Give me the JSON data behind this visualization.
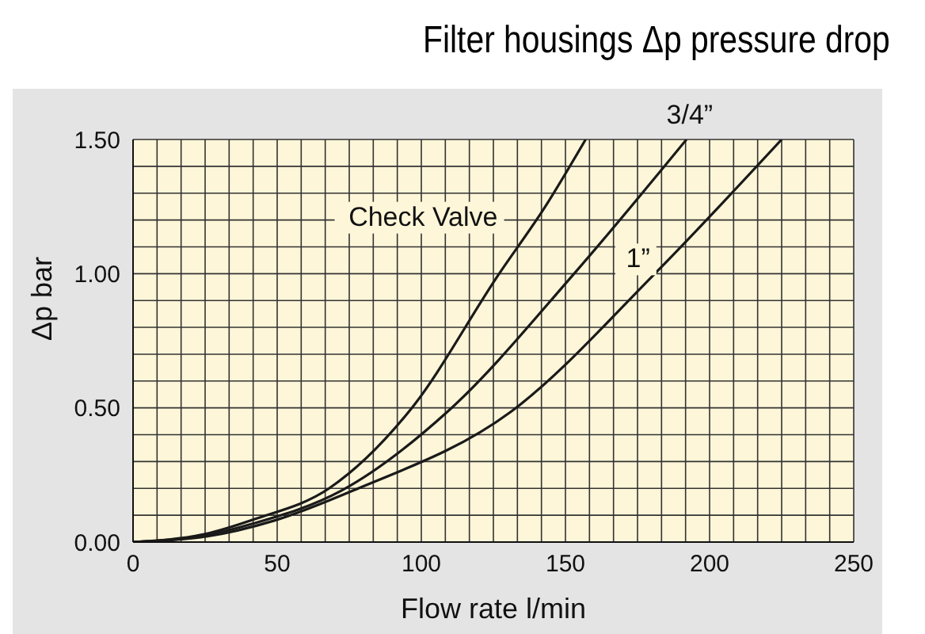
{
  "chart_data": {
    "type": "line",
    "title": "Filter housings Δp pressure drop",
    "xlabel": "Flow rate l/min",
    "ylabel": "Δp bar",
    "series": [
      {
        "name": "Check Valve",
        "color": "#1a1a1a",
        "x": [
          0,
          25,
          42,
          68,
          96,
          127,
          143,
          157
        ],
        "values": [
          0,
          0.03,
          0.085,
          0.2,
          0.49,
          1.0,
          1.25,
          1.5
        ]
      },
      {
        "name": "3/4”",
        "color": "#1a1a1a",
        "x": [
          0,
          25,
          42,
          72,
          109,
          153,
          192
        ],
        "values": [
          0,
          0.025,
          0.07,
          0.19,
          0.485,
          1.0,
          1.5
        ]
      },
      {
        "name": "1”",
        "color": "#1a1a1a",
        "x": [
          0,
          25,
          49,
          77,
          131,
          181,
          225
        ],
        "values": [
          0,
          0.02,
          0.08,
          0.195,
          0.485,
          1.0,
          1.5
        ]
      }
    ],
    "xlim": [
      0,
      250
    ],
    "xticks": [
      0,
      {
        "value": 8.33,
        "label": null
      },
      {
        "value": 16.67,
        "label": null
      },
      {
        "value": 25,
        "label": null
      },
      {
        "value": 33.33,
        "label": null
      },
      {
        "value": 41.67,
        "label": null
      },
      50,
      {
        "value": 58.33,
        "label": null
      },
      {
        "value": 66.67,
        "label": null
      },
      {
        "value": 75,
        "label": null
      },
      {
        "value": 83.33,
        "label": null
      },
      {
        "value": 91.67,
        "label": null
      },
      100,
      {
        "value": 108.33,
        "label": null
      },
      {
        "value": 116.67,
        "label": null
      },
      {
        "value": 125,
        "label": null
      },
      {
        "value": 133.33,
        "label": null
      },
      {
        "value": 141.67,
        "label": null
      },
      150,
      {
        "value": 158.33,
        "label": null
      },
      {
        "value": 166.67,
        "label": null
      },
      {
        "value": 175,
        "label": null
      },
      {
        "value": 183.33,
        "label": null
      },
      {
        "value": 191.67,
        "label": null
      },
      200,
      {
        "value": 208.33,
        "label": null
      },
      {
        "value": 216.67,
        "label": null
      },
      {
        "value": 225,
        "label": null
      },
      {
        "value": 233.33,
        "label": null
      },
      {
        "value": 241.67,
        "label": null
      },
      250
    ],
    "ylim": [
      0,
      1.5
    ],
    "yticks": [
      {
        "value": 0,
        "label": "0.00"
      },
      {
        "value": 0.1,
        "label": null
      },
      {
        "value": 0.2,
        "label": null
      },
      {
        "value": 0.3,
        "label": null
      },
      {
        "value": 0.4,
        "label": null
      },
      {
        "value": 0.5,
        "label": "0.50"
      },
      {
        "value": 0.6,
        "label": null
      },
      {
        "value": 0.7,
        "label": null
      },
      {
        "value": 0.8,
        "label": null
      },
      {
        "value": 0.9,
        "label": null
      },
      {
        "value": 1,
        "label": "1.00"
      },
      {
        "value": 1.1,
        "label": null
      },
      {
        "value": 1.2,
        "label": null
      },
      {
        "value": 1.3,
        "label": null
      },
      {
        "value": 1.4,
        "label": null
      },
      {
        "value": 1.5,
        "label": "1.50"
      }
    ],
    "grid": true,
    "legend": false,
    "marker": "none",
    "line_style": "solid"
  }
}
